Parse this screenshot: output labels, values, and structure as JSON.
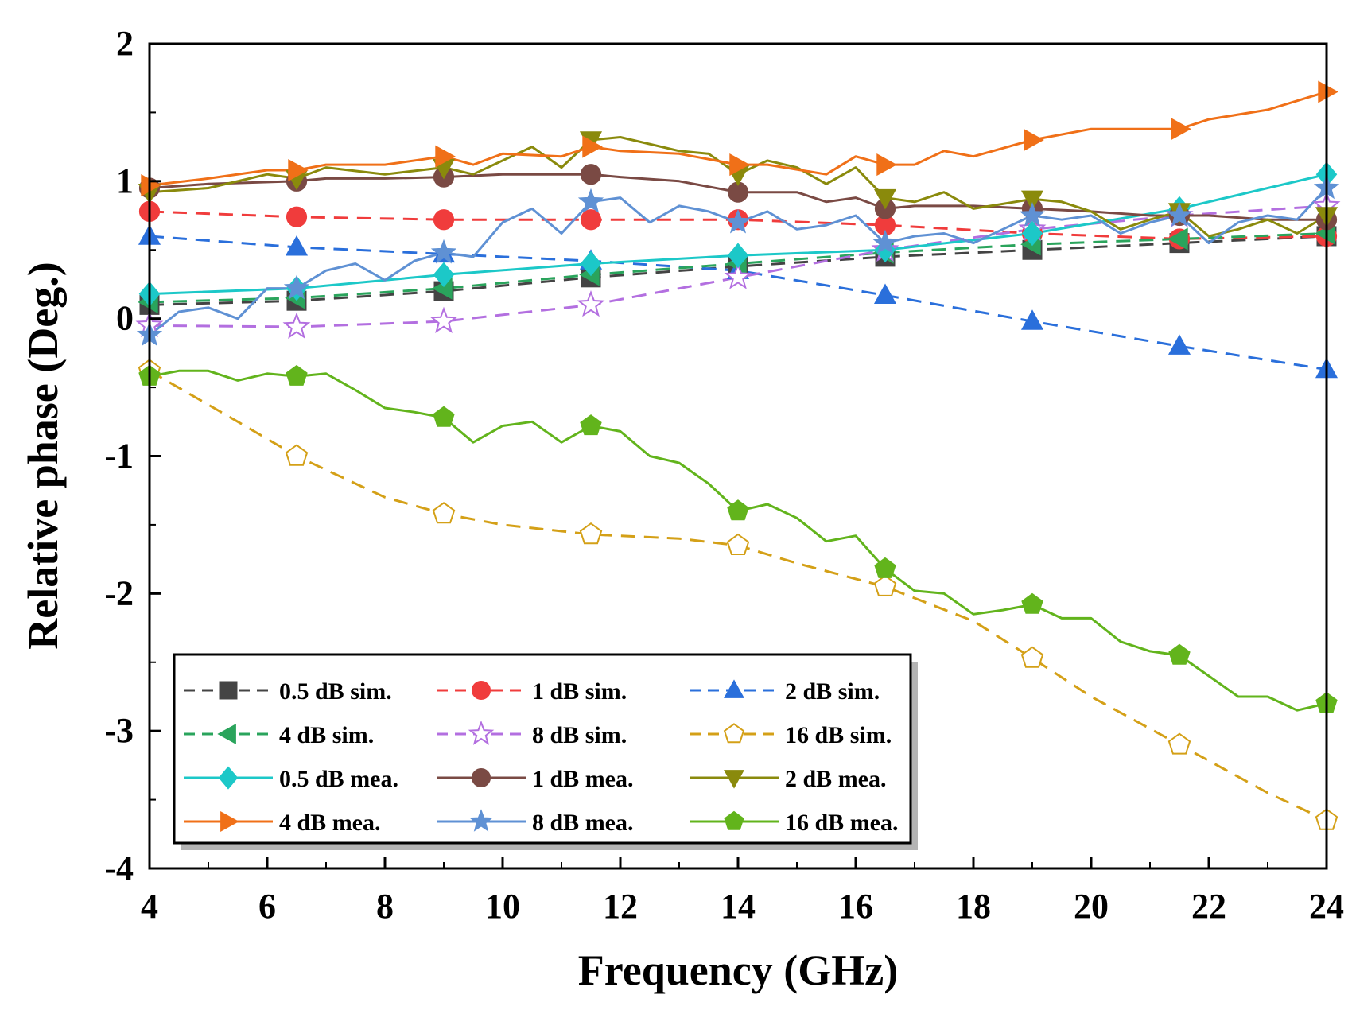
{
  "chart_data": {
    "type": "line",
    "title": "",
    "xlabel": "Frequency (GHz)",
    "ylabel": "Relative phase (Deg.)",
    "xlim": [
      4,
      24
    ],
    "ylim": [
      -4,
      2
    ],
    "xticks": [
      "4",
      "6",
      "8",
      "10",
      "12",
      "14",
      "16",
      "18",
      "20",
      "22",
      "24"
    ],
    "yticks": [
      "-4",
      "-3",
      "-2",
      "-1",
      "0",
      "1",
      "2"
    ],
    "legend_position": "bottom-left",
    "series": [
      {
        "name": "0.5 dB sim.",
        "color": "#444444",
        "dash": "dashed",
        "marker": "square",
        "filled": true,
        "x": [
          4,
          6.5,
          9,
          11.5,
          14,
          16.5,
          19,
          21.5,
          24
        ],
        "y": [
          0.1,
          0.13,
          0.2,
          0.3,
          0.38,
          0.45,
          0.5,
          0.55,
          0.6
        ]
      },
      {
        "name": "1 dB sim.",
        "color": "#f03c3c",
        "dash": "dashed",
        "marker": "circle",
        "filled": true,
        "x": [
          4,
          6.5,
          9,
          11.5,
          14,
          16.5,
          19,
          21.5,
          24
        ],
        "y": [
          0.78,
          0.74,
          0.72,
          0.72,
          0.72,
          0.68,
          0.62,
          0.58,
          0.6
        ]
      },
      {
        "name": "2 dB sim.",
        "color": "#2a6fdb",
        "dash": "dashed",
        "marker": "triangle-up",
        "filled": true,
        "x": [
          4,
          6.5,
          9,
          11.5,
          14,
          16.5,
          19,
          21.5,
          24
        ],
        "y": [
          0.6,
          0.52,
          0.47,
          0.42,
          0.35,
          0.17,
          -0.02,
          -0.2,
          -0.37
        ]
      },
      {
        "name": "4 dB sim.",
        "color": "#2aa45c",
        "dash": "dashed",
        "marker": "triangle-left",
        "filled": true,
        "x": [
          4,
          6.5,
          9,
          11.5,
          14,
          16.5,
          19,
          21.5,
          24
        ],
        "y": [
          0.12,
          0.15,
          0.22,
          0.32,
          0.4,
          0.48,
          0.54,
          0.58,
          0.62
        ]
      },
      {
        "name": "8 dB sim.",
        "color": "#b36fe0",
        "dash": "dashed",
        "marker": "star",
        "filled": false,
        "x": [
          4,
          6.5,
          9,
          11.5,
          14,
          16.5,
          19,
          21.5,
          24
        ],
        "y": [
          -0.05,
          -0.06,
          -0.02,
          0.1,
          0.3,
          0.5,
          0.65,
          0.75,
          0.82
        ]
      },
      {
        "name": "16 dB sim.",
        "color": "#d4a017",
        "dash": "dashed",
        "marker": "pentagon",
        "filled": false,
        "x": [
          4,
          5.5,
          6.5,
          8,
          9,
          10,
          11.5,
          13,
          14,
          15,
          16.5,
          18,
          19,
          20,
          21.5,
          23,
          24
        ],
        "y": [
          -0.38,
          -0.75,
          -1.0,
          -1.3,
          -1.42,
          -1.5,
          -1.57,
          -1.6,
          -1.65,
          -1.78,
          -1.95,
          -2.2,
          -2.47,
          -2.75,
          -3.1,
          -3.45,
          -3.65
        ]
      },
      {
        "name": "0.5 dB mea.",
        "color": "#1cc8c8",
        "dash": "solid",
        "marker": "diamond",
        "filled": true,
        "x": [
          4,
          6.5,
          9,
          11.5,
          14,
          16.5,
          19,
          21.5,
          24
        ],
        "y": [
          0.18,
          0.22,
          0.32,
          0.4,
          0.46,
          0.5,
          0.62,
          0.8,
          1.05
        ]
      },
      {
        "name": "1 dB mea.",
        "color": "#7a4a44",
        "dash": "solid",
        "marker": "circle",
        "filled": true,
        "x": [
          4,
          5,
          6.5,
          7,
          8,
          9,
          10,
          11.5,
          12,
          13,
          14,
          15,
          15.5,
          16,
          16.5,
          17,
          18,
          19,
          20,
          21,
          21.5,
          22,
          23,
          24
        ],
        "y": [
          0.95,
          0.98,
          1.0,
          1.02,
          1.02,
          1.03,
          1.05,
          1.05,
          1.03,
          1.0,
          0.92,
          0.92,
          0.85,
          0.88,
          0.8,
          0.82,
          0.82,
          0.8,
          0.78,
          0.75,
          0.75,
          0.75,
          0.72,
          0.72
        ]
      },
      {
        "name": "2 dB mea.",
        "color": "#8a8a0c",
        "dash": "solid",
        "marker": "triangle-down",
        "filled": true,
        "x": [
          4,
          5,
          6,
          6.5,
          7,
          8,
          9,
          9.5,
          10.5,
          11,
          11.5,
          12,
          13,
          13.5,
          14,
          14.5,
          15,
          15.5,
          16,
          16.5,
          17,
          17.5,
          18,
          19,
          19.5,
          20,
          20.5,
          21,
          21.5,
          22,
          22.5,
          23,
          23.5,
          24
        ],
        "y": [
          0.92,
          0.95,
          1.05,
          1.02,
          1.1,
          1.05,
          1.1,
          1.05,
          1.25,
          1.1,
          1.3,
          1.32,
          1.22,
          1.2,
          1.05,
          1.15,
          1.1,
          0.98,
          1.1,
          0.88,
          0.85,
          0.92,
          0.8,
          0.87,
          0.85,
          0.78,
          0.65,
          0.72,
          0.78,
          0.6,
          0.65,
          0.72,
          0.62,
          0.75
        ]
      },
      {
        "name": "4 dB mea.",
        "color": "#f07018",
        "dash": "solid",
        "marker": "triangle-right",
        "filled": true,
        "x": [
          4,
          5,
          6,
          6.5,
          7,
          8,
          9,
          9.5,
          10,
          11,
          11.5,
          12,
          13,
          14,
          14.5,
          15.5,
          16,
          16.5,
          17,
          17.5,
          18,
          19,
          20,
          21,
          21.5,
          22,
          23,
          24
        ],
        "y": [
          0.97,
          1.02,
          1.08,
          1.08,
          1.12,
          1.12,
          1.18,
          1.12,
          1.2,
          1.18,
          1.25,
          1.22,
          1.2,
          1.12,
          1.12,
          1.05,
          1.18,
          1.12,
          1.12,
          1.22,
          1.18,
          1.3,
          1.38,
          1.38,
          1.38,
          1.45,
          1.52,
          1.65
        ]
      },
      {
        "name": "8 dB mea.",
        "color": "#5f91d4",
        "dash": "solid",
        "marker": "star",
        "filled": true,
        "x": [
          4,
          4.5,
          5,
          5.5,
          6,
          6.5,
          7,
          7.5,
          8,
          8.5,
          9,
          9.5,
          10,
          10.5,
          11,
          11.5,
          12,
          12.5,
          13,
          13.5,
          14,
          14.5,
          15,
          15.5,
          16,
          16.5,
          17,
          17.5,
          18,
          18.5,
          19,
          19.5,
          20,
          20.5,
          21,
          21.5,
          22,
          22.5,
          23,
          23.5,
          24
        ],
        "y": [
          -0.12,
          0.05,
          0.08,
          0.0,
          0.22,
          0.22,
          0.35,
          0.4,
          0.28,
          0.42,
          0.48,
          0.45,
          0.7,
          0.8,
          0.62,
          0.85,
          0.88,
          0.7,
          0.82,
          0.78,
          0.7,
          0.78,
          0.65,
          0.68,
          0.75,
          0.55,
          0.6,
          0.62,
          0.55,
          0.65,
          0.75,
          0.72,
          0.75,
          0.62,
          0.7,
          0.75,
          0.55,
          0.7,
          0.75,
          0.72,
          0.95
        ]
      },
      {
        "name": "16 dB mea.",
        "color": "#62b41c",
        "dash": "solid",
        "marker": "pentagon",
        "filled": true,
        "x": [
          4,
          4.5,
          5,
          5.5,
          6,
          6.5,
          7,
          7.5,
          8,
          8.5,
          9,
          9.5,
          10,
          10.5,
          11,
          11.5,
          12,
          12.5,
          13,
          13.5,
          14,
          14.5,
          15,
          15.5,
          16,
          16.5,
          17,
          17.5,
          18,
          18.5,
          19,
          19.5,
          20,
          20.5,
          21,
          21.5,
          22,
          22.5,
          23,
          23.5,
          24
        ],
        "y": [
          -0.42,
          -0.38,
          -0.38,
          -0.45,
          -0.4,
          -0.42,
          -0.4,
          -0.52,
          -0.65,
          -0.68,
          -0.72,
          -0.9,
          -0.78,
          -0.75,
          -0.9,
          -0.78,
          -0.82,
          -1.0,
          -1.05,
          -1.2,
          -1.4,
          -1.35,
          -1.45,
          -1.62,
          -1.58,
          -1.82,
          -1.98,
          -2.0,
          -2.15,
          -2.12,
          -2.08,
          -2.18,
          -2.18,
          -2.35,
          -2.42,
          -2.45,
          -2.6,
          -2.75,
          -2.75,
          -2.85,
          -2.8
        ]
      }
    ]
  }
}
